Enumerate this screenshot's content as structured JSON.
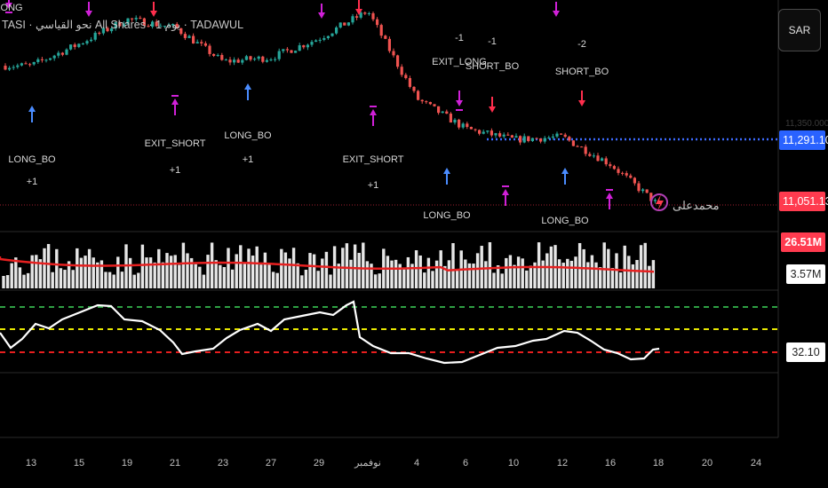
{
  "header": {
    "title": "TASI · نحو القياسي All Shares · 1 يوم · TADAWUL",
    "currency_button": "SAR"
  },
  "price_axis": {
    "faint_label": "11,350.000",
    "last_price": "11,051.130",
    "level_price": "11,291.100",
    "overlay_text": "محمدعلى"
  },
  "volume_pane": {
    "volume_value": "26.51M",
    "ma_value": "3.57M"
  },
  "rsi_pane": {
    "rsi_value": "32.10"
  },
  "x_axis": {
    "labels": [
      "13",
      "15",
      "19",
      "21",
      "23",
      "27",
      "29",
      "نوفمبر",
      "4",
      "6",
      "10",
      "12",
      "16",
      "18",
      "20",
      "24"
    ]
  },
  "colors": {
    "up": "#26a69a",
    "down": "#ef5350",
    "blue_arrow": "#4a8cff",
    "magenta_arrow": "#d020d8",
    "red_arrow": "#ff2e4d",
    "level_dotted": "#3d6bff",
    "vol_ma": "#e62020",
    "rsi_line": "#ffffff",
    "rsi_upper": "#2ea043",
    "rsi_mid": "#e6e600",
    "rsi_lower": "#e61e1e"
  },
  "chart_data": [
    {
      "type": "line",
      "name": "price",
      "x": [
        "13",
        "15",
        "19",
        "21",
        "23",
        "27",
        "29",
        "نوفمبر",
        "4",
        "6",
        "10",
        "12",
        "16",
        "18"
      ],
      "values": [
        11560,
        11640,
        11730,
        11700,
        11575,
        11590,
        11660,
        11760,
        11440,
        11330,
        11290,
        11300,
        11200,
        11051.13
      ]
    },
    {
      "type": "bar",
      "name": "volume",
      "last_value": "26.51M",
      "ma_value": "3.57M"
    },
    {
      "type": "line",
      "name": "rsi",
      "last_value": "32.10",
      "levels": [
        70,
        50,
        30
      ]
    },
    {
      "type": "signals",
      "labels": [
        {
          "text": "LONG"
        },
        {
          "text": "LONG_BO",
          "sub": "+1"
        },
        {
          "text": "EXIT_SHORT",
          "sub": "+1"
        },
        {
          "text": "LONG_BO",
          "sub": "+1"
        },
        {
          "text": "EXIT_SHORT",
          "sub": "+1"
        },
        {
          "text": "EXIT_LONG",
          "pre": "-1"
        },
        {
          "text": "SHORT_BO",
          "pre": "-1"
        },
        {
          "text": "LONG_BO"
        },
        {
          "text": "SHORT_BO",
          "pre": "-2"
        },
        {
          "text": "LONG_BO"
        }
      ]
    }
  ]
}
